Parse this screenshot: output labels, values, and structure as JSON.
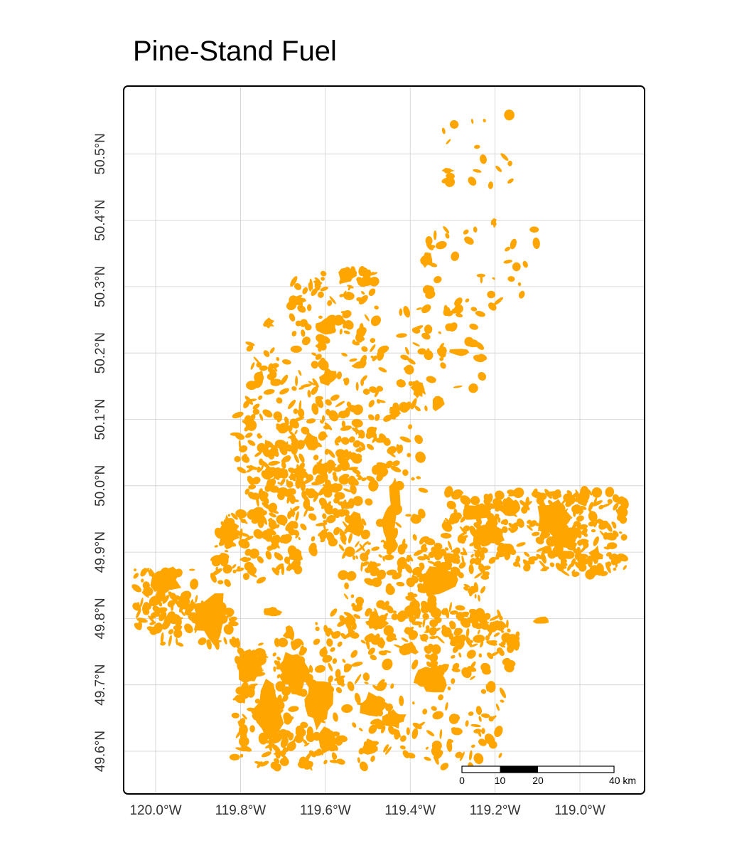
{
  "title": "Pine-Stand Fuel",
  "colors": {
    "fuel": "#FFA500",
    "grid": "#cfcfcf",
    "frame": "#000000",
    "background": "#ffffff"
  },
  "axes": {
    "x_ticks": [
      "120.0°W",
      "119.8°W",
      "119.6°W",
      "119.4°W",
      "119.2°W",
      "119.0°W"
    ],
    "y_ticks": [
      "49.6°N",
      "49.7°N",
      "49.8°N",
      "49.9°N",
      "50.0°N",
      "50.1°N",
      "50.2°N",
      "50.3°N",
      "50.4°N",
      "50.5°N"
    ],
    "x_range_deg": [
      -120.06,
      -118.85
    ],
    "y_range_deg": [
      49.54,
      50.59
    ],
    "grid": true
  },
  "scale_bar": {
    "labels": [
      "0",
      "10",
      "20",
      "40 km"
    ]
  },
  "legend": null
}
